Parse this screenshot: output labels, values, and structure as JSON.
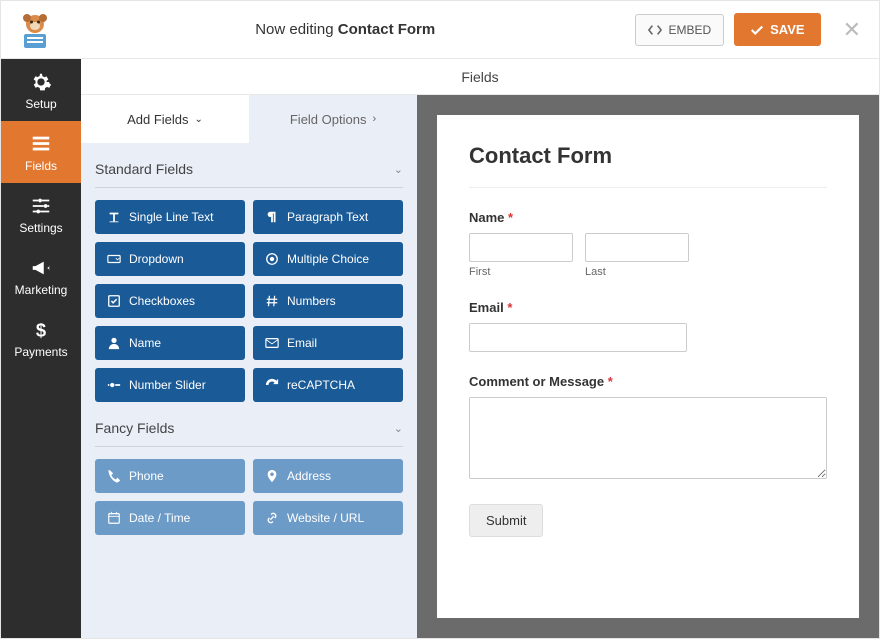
{
  "header": {
    "now_editing_prefix": "Now editing ",
    "form_name": "Contact Form",
    "embed_label": "EMBED",
    "save_label": "SAVE"
  },
  "nav": {
    "setup": "Setup",
    "fields": "Fields",
    "settings": "Settings",
    "marketing": "Marketing",
    "payments": "Payments"
  },
  "main_title": "Fields",
  "tabs": {
    "add": "Add Fields",
    "options": "Field Options"
  },
  "groups": {
    "standard": {
      "title": "Standard Fields",
      "items": [
        {
          "icon": "text",
          "label": "Single Line Text"
        },
        {
          "icon": "paragraph",
          "label": "Paragraph Text"
        },
        {
          "icon": "dropdown",
          "label": "Dropdown"
        },
        {
          "icon": "radio",
          "label": "Multiple Choice"
        },
        {
          "icon": "checkbox",
          "label": "Checkboxes"
        },
        {
          "icon": "hash",
          "label": "Numbers"
        },
        {
          "icon": "person",
          "label": "Name"
        },
        {
          "icon": "mail",
          "label": "Email"
        },
        {
          "icon": "slider",
          "label": "Number Slider"
        },
        {
          "icon": "recaptcha",
          "label": "reCAPTCHA"
        }
      ]
    },
    "fancy": {
      "title": "Fancy Fields",
      "items": [
        {
          "icon": "phone",
          "label": "Phone"
        },
        {
          "icon": "pin",
          "label": "Address"
        },
        {
          "icon": "calendar",
          "label": "Date / Time"
        },
        {
          "icon": "link",
          "label": "Website / URL"
        }
      ]
    }
  },
  "preview": {
    "title": "Contact Form",
    "name_label": "Name",
    "first_sublabel": "First",
    "last_sublabel": "Last",
    "email_label": "Email",
    "comment_label": "Comment or Message",
    "submit_label": "Submit",
    "required_marker": "*"
  },
  "colors": {
    "accent": "#e27730",
    "nav_bg": "#2d2d2d",
    "panel_bg": "#e9eef7",
    "field_btn": "#1a5a96",
    "field_btn_fancy": "#6d9bc8",
    "preview_bg": "#6b6b6b"
  }
}
